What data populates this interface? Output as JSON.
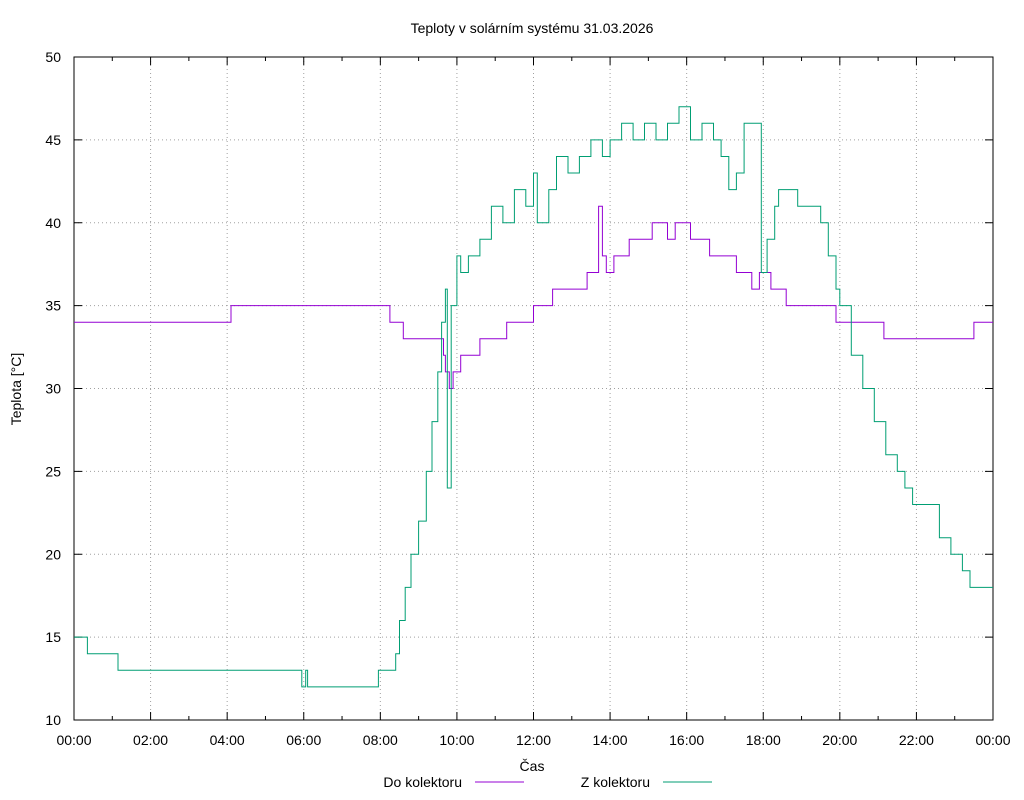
{
  "chart_data": {
    "type": "line",
    "title": "Teploty v solárním systému 31.03.2026",
    "xlabel": "Čas",
    "ylabel": "Teplota [°C]",
    "xlim": [
      0,
      24
    ],
    "ylim": [
      10,
      50
    ],
    "x_ticks": [
      "00:00",
      "02:00",
      "04:00",
      "06:00",
      "08:00",
      "10:00",
      "12:00",
      "14:00",
      "16:00",
      "18:00",
      "20:00",
      "22:00",
      "00:00"
    ],
    "y_ticks": [
      "10",
      "15",
      "20",
      "25",
      "30",
      "35",
      "40",
      "45",
      "50"
    ],
    "grid": true,
    "legend_position": "bottom",
    "series": [
      {
        "name": "Do kolektoru",
        "color": "#9400d3",
        "points": [
          [
            0,
            34
          ],
          [
            4.05,
            34
          ],
          [
            4.1,
            35
          ],
          [
            8.2,
            35
          ],
          [
            8.25,
            34
          ],
          [
            8.5,
            34
          ],
          [
            8.6,
            33
          ],
          [
            9.6,
            33
          ],
          [
            9.65,
            32
          ],
          [
            9.7,
            31
          ],
          [
            9.8,
            30
          ],
          [
            9.9,
            31
          ],
          [
            10.1,
            32
          ],
          [
            10.3,
            32
          ],
          [
            10.6,
            33
          ],
          [
            11.0,
            33
          ],
          [
            11.3,
            34
          ],
          [
            11.8,
            34
          ],
          [
            12.0,
            35
          ],
          [
            12.3,
            35
          ],
          [
            12.5,
            36
          ],
          [
            13.0,
            36
          ],
          [
            13.4,
            37
          ],
          [
            13.6,
            37
          ],
          [
            13.7,
            41
          ],
          [
            13.8,
            38
          ],
          [
            13.9,
            37
          ],
          [
            14.1,
            38
          ],
          [
            14.5,
            39
          ],
          [
            14.9,
            39
          ],
          [
            15.1,
            40
          ],
          [
            15.5,
            39
          ],
          [
            15.7,
            40
          ],
          [
            16.0,
            40
          ],
          [
            16.1,
            39
          ],
          [
            16.5,
            39
          ],
          [
            16.6,
            38
          ],
          [
            17.1,
            38
          ],
          [
            17.3,
            37
          ],
          [
            17.6,
            37
          ],
          [
            17.7,
            36
          ],
          [
            17.9,
            37
          ],
          [
            18.2,
            36
          ],
          [
            18.5,
            36
          ],
          [
            18.6,
            35
          ],
          [
            19.8,
            35
          ],
          [
            19.9,
            34
          ],
          [
            21.1,
            34
          ],
          [
            21.15,
            33
          ],
          [
            22.5,
            33
          ],
          [
            23.4,
            33
          ],
          [
            23.5,
            34
          ],
          [
            24,
            34
          ]
        ]
      },
      {
        "name": "Z kolektoru",
        "color": "#009e73",
        "points": [
          [
            0,
            15
          ],
          [
            0.3,
            15
          ],
          [
            0.35,
            14
          ],
          [
            1.1,
            14
          ],
          [
            1.15,
            13
          ],
          [
            5.9,
            13
          ],
          [
            5.95,
            12
          ],
          [
            6.05,
            13
          ],
          [
            6.1,
            12
          ],
          [
            7.9,
            12
          ],
          [
            7.95,
            13
          ],
          [
            8.3,
            13
          ],
          [
            8.4,
            14
          ],
          [
            8.5,
            16
          ],
          [
            8.65,
            18
          ],
          [
            8.8,
            20
          ],
          [
            9.0,
            22
          ],
          [
            9.2,
            25
          ],
          [
            9.35,
            28
          ],
          [
            9.5,
            31
          ],
          [
            9.6,
            34
          ],
          [
            9.7,
            36
          ],
          [
            9.75,
            24
          ],
          [
            9.85,
            35
          ],
          [
            10.0,
            38
          ],
          [
            10.1,
            37
          ],
          [
            10.3,
            38
          ],
          [
            10.6,
            39
          ],
          [
            10.9,
            41
          ],
          [
            11.2,
            40
          ],
          [
            11.5,
            42
          ],
          [
            11.8,
            41
          ],
          [
            12.0,
            43
          ],
          [
            12.1,
            40
          ],
          [
            12.4,
            42
          ],
          [
            12.6,
            44
          ],
          [
            12.9,
            43
          ],
          [
            13.2,
            44
          ],
          [
            13.5,
            45
          ],
          [
            13.8,
            44
          ],
          [
            14.0,
            45
          ],
          [
            14.3,
            46
          ],
          [
            14.6,
            45
          ],
          [
            14.9,
            46
          ],
          [
            15.2,
            45
          ],
          [
            15.5,
            46
          ],
          [
            15.8,
            47
          ],
          [
            16.1,
            45
          ],
          [
            16.4,
            46
          ],
          [
            16.7,
            45
          ],
          [
            16.9,
            44
          ],
          [
            17.1,
            42
          ],
          [
            17.3,
            43
          ],
          [
            17.5,
            46
          ],
          [
            17.9,
            46
          ],
          [
            17.95,
            37
          ],
          [
            18.1,
            39
          ],
          [
            18.3,
            41
          ],
          [
            18.4,
            42
          ],
          [
            18.8,
            42
          ],
          [
            18.9,
            41
          ],
          [
            19.4,
            41
          ],
          [
            19.5,
            40
          ],
          [
            19.7,
            38
          ],
          [
            19.9,
            36
          ],
          [
            20.0,
            35
          ],
          [
            20.3,
            32
          ],
          [
            20.6,
            30
          ],
          [
            20.9,
            28
          ],
          [
            21.2,
            26
          ],
          [
            21.5,
            25
          ],
          [
            21.7,
            24
          ],
          [
            21.9,
            23
          ],
          [
            22.3,
            23
          ],
          [
            22.6,
            21
          ],
          [
            22.9,
            20
          ],
          [
            23.2,
            19
          ],
          [
            23.4,
            18
          ],
          [
            24,
            18
          ]
        ]
      }
    ]
  }
}
